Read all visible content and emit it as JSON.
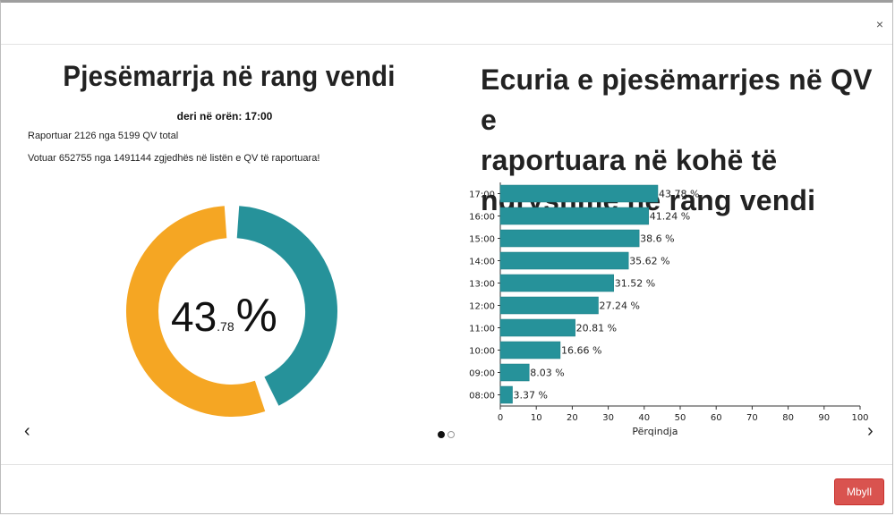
{
  "modal": {
    "close_icon": "×",
    "close_button_label": "Mbyll"
  },
  "left": {
    "title": "Pjesëmarrja në rang vendi",
    "subtitle": "deri në orën: 17:00",
    "reported_line": "Raportuar 2126 nga 5199 QV total",
    "voted_line": "Votuar 652755 nga 1491144 zgjedhës në listën e QV të raportuara!",
    "percentage_int": "43",
    "percentage_dec": ".78",
    "percentage_symbol": "%",
    "donut": {
      "value": 43.78,
      "filled_color": "#26929a",
      "remaining_color": "#f5a623"
    }
  },
  "right": {
    "title_line1": "Ecuria e pjesëmarrjes në QV e",
    "title_line2": "raportuara në kohë të",
    "title_line3": "ndryshme në rang vendi"
  },
  "nav": {
    "prev_icon": "‹",
    "next_icon": "›"
  },
  "chart_data": {
    "type": "bar",
    "orientation": "horizontal",
    "categories": [
      "17:00",
      "16:00",
      "15:00",
      "14:00",
      "13:00",
      "12:00",
      "11:00",
      "10:00",
      "09:00",
      "08:00"
    ],
    "values": [
      43.78,
      41.24,
      38.6,
      35.62,
      31.52,
      27.24,
      20.81,
      16.66,
      8.03,
      3.37
    ],
    "labels": [
      "43.78 %",
      "41.24 %",
      "38.6 %",
      "35.62 %",
      "31.52 %",
      "27.24 %",
      "20.81 %",
      "16.66 %",
      "8.03 %",
      "3.37 %"
    ],
    "xlabel": "Përqindja",
    "xlim": [
      0,
      100
    ],
    "xticks": [
      "0",
      "10",
      "20",
      "30",
      "40",
      "50",
      "60",
      "70",
      "80",
      "90",
      "100"
    ],
    "bar_color": "#26929a"
  }
}
